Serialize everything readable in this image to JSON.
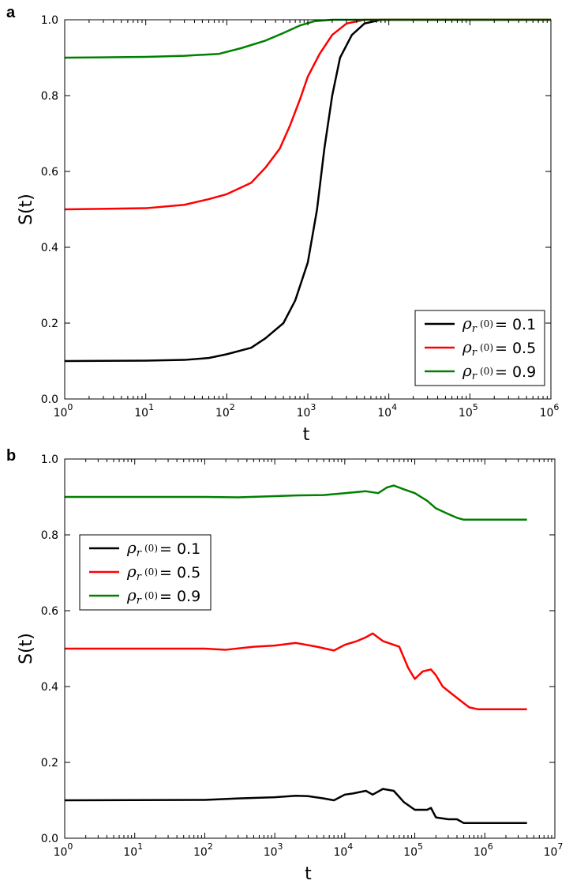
{
  "chart_data": [
    {
      "panel": "a",
      "type": "line",
      "xscale": "log",
      "xlim": [
        1,
        1000000
      ],
      "ylim": [
        0.0,
        1.0
      ],
      "xlabel": "t",
      "ylabel": "S(t)",
      "xticks": [
        {
          "value": 1,
          "base": "10",
          "exp": "0"
        },
        {
          "value": 10,
          "base": "10",
          "exp": "1"
        },
        {
          "value": 100,
          "base": "10",
          "exp": "2"
        },
        {
          "value": 1000,
          "base": "10",
          "exp": "3"
        },
        {
          "value": 10000,
          "base": "10",
          "exp": "4"
        },
        {
          "value": 100000,
          "base": "10",
          "exp": "5"
        },
        {
          "value": 1000000,
          "base": "10",
          "exp": "6"
        }
      ],
      "yticks": [
        {
          "value": 0.0,
          "label": "0.0"
        },
        {
          "value": 0.2,
          "label": "0.2"
        },
        {
          "value": 0.4,
          "label": "0.4"
        },
        {
          "value": 0.6,
          "label": "0.6"
        },
        {
          "value": 0.8,
          "label": "0.8"
        },
        {
          "value": 1.0,
          "label": "1.0"
        }
      ],
      "legend_position": "bottom-right",
      "series": [
        {
          "name": "0.1",
          "color": "#000000",
          "points": [
            [
              1,
              0.1
            ],
            [
              10,
              0.101
            ],
            [
              30,
              0.103
            ],
            [
              60,
              0.108
            ],
            [
              100,
              0.118
            ],
            [
              200,
              0.135
            ],
            [
              300,
              0.16
            ],
            [
              500,
              0.2
            ],
            [
              700,
              0.26
            ],
            [
              1000,
              0.36
            ],
            [
              1300,
              0.5
            ],
            [
              1600,
              0.66
            ],
            [
              2000,
              0.8
            ],
            [
              2500,
              0.9
            ],
            [
              3500,
              0.96
            ],
            [
              5000,
              0.99
            ],
            [
              8000,
              1.0
            ],
            [
              1000000,
              1.0
            ]
          ]
        },
        {
          "name": "0.5",
          "color": "#ff0000",
          "points": [
            [
              1,
              0.5
            ],
            [
              10,
              0.503
            ],
            [
              30,
              0.512
            ],
            [
              60,
              0.527
            ],
            [
              100,
              0.54
            ],
            [
              200,
              0.57
            ],
            [
              300,
              0.61
            ],
            [
              450,
              0.66
            ],
            [
              600,
              0.72
            ],
            [
              800,
              0.79
            ],
            [
              1000,
              0.85
            ],
            [
              1400,
              0.91
            ],
            [
              2000,
              0.96
            ],
            [
              3000,
              0.99
            ],
            [
              5000,
              1.0
            ],
            [
              1000000,
              1.0
            ]
          ]
        },
        {
          "name": "0.9",
          "color": "#008000",
          "points": [
            [
              1,
              0.9
            ],
            [
              10,
              0.902
            ],
            [
              30,
              0.905
            ],
            [
              80,
              0.91
            ],
            [
              150,
              0.925
            ],
            [
              300,
              0.945
            ],
            [
              500,
              0.965
            ],
            [
              800,
              0.985
            ],
            [
              1200,
              0.996
            ],
            [
              2000,
              1.0
            ],
            [
              1000000,
              1.0
            ]
          ]
        }
      ]
    },
    {
      "panel": "b",
      "type": "line",
      "xscale": "log",
      "xlim": [
        1,
        10000000
      ],
      "ylim": [
        0.0,
        1.0
      ],
      "xlabel": "t",
      "ylabel": "S(t)",
      "xticks": [
        {
          "value": 1,
          "base": "10",
          "exp": "0"
        },
        {
          "value": 10,
          "base": "10",
          "exp": "1"
        },
        {
          "value": 100,
          "base": "10",
          "exp": "2"
        },
        {
          "value": 1000,
          "base": "10",
          "exp": "3"
        },
        {
          "value": 10000,
          "base": "10",
          "exp": "4"
        },
        {
          "value": 100000,
          "base": "10",
          "exp": "5"
        },
        {
          "value": 1000000,
          "base": "10",
          "exp": "6"
        },
        {
          "value": 10000000,
          "base": "10",
          "exp": "7"
        }
      ],
      "yticks": [
        {
          "value": 0.0,
          "label": "0.0"
        },
        {
          "value": 0.2,
          "label": "0.2"
        },
        {
          "value": 0.4,
          "label": "0.4"
        },
        {
          "value": 0.6,
          "label": "0.6"
        },
        {
          "value": 0.8,
          "label": "0.8"
        },
        {
          "value": 1.0,
          "label": "1.0"
        }
      ],
      "legend_position": "upper-left",
      "series": [
        {
          "name": "0.1",
          "color": "#000000",
          "points": [
            [
              1,
              0.1
            ],
            [
              100,
              0.101
            ],
            [
              300,
              0.105
            ],
            [
              1000,
              0.108
            ],
            [
              2000,
              0.112
            ],
            [
              3000,
              0.111
            ],
            [
              5000,
              0.105
            ],
            [
              7000,
              0.1
            ],
            [
              10000,
              0.115
            ],
            [
              13000,
              0.118
            ],
            [
              20000,
              0.125
            ],
            [
              25000,
              0.115
            ],
            [
              35000,
              0.13
            ],
            [
              50000,
              0.125
            ],
            [
              70000,
              0.095
            ],
            [
              100000,
              0.075
            ],
            [
              150000,
              0.075
            ],
            [
              170000,
              0.08
            ],
            [
              200000,
              0.055
            ],
            [
              300000,
              0.05
            ],
            [
              400000,
              0.05
            ],
            [
              500000,
              0.04
            ],
            [
              4000000,
              0.04
            ]
          ]
        },
        {
          "name": "0.5",
          "color": "#ff0000",
          "points": [
            [
              1,
              0.5
            ],
            [
              100,
              0.5
            ],
            [
              200,
              0.497
            ],
            [
              500,
              0.505
            ],
            [
              1000,
              0.508
            ],
            [
              2000,
              0.515
            ],
            [
              4000,
              0.505
            ],
            [
              7000,
              0.495
            ],
            [
              10000,
              0.51
            ],
            [
              15000,
              0.52
            ],
            [
              20000,
              0.53
            ],
            [
              25000,
              0.54
            ],
            [
              35000,
              0.52
            ],
            [
              50000,
              0.51
            ],
            [
              60000,
              0.505
            ],
            [
              80000,
              0.45
            ],
            [
              100000,
              0.42
            ],
            [
              130000,
              0.44
            ],
            [
              170000,
              0.445
            ],
            [
              200000,
              0.43
            ],
            [
              250000,
              0.4
            ],
            [
              400000,
              0.37
            ],
            [
              600000,
              0.345
            ],
            [
              800000,
              0.34
            ],
            [
              4000000,
              0.34
            ]
          ]
        },
        {
          "name": "0.9",
          "color": "#008000",
          "points": [
            [
              1,
              0.9
            ],
            [
              100,
              0.9
            ],
            [
              300,
              0.899
            ],
            [
              1000,
              0.902
            ],
            [
              2000,
              0.904
            ],
            [
              5000,
              0.905
            ],
            [
              10000,
              0.91
            ],
            [
              20000,
              0.915
            ],
            [
              30000,
              0.91
            ],
            [
              40000,
              0.925
            ],
            [
              50000,
              0.93
            ],
            [
              70000,
              0.92
            ],
            [
              100000,
              0.91
            ],
            [
              150000,
              0.89
            ],
            [
              200000,
              0.87
            ],
            [
              300000,
              0.855
            ],
            [
              400000,
              0.845
            ],
            [
              500000,
              0.84
            ],
            [
              4000000,
              0.84
            ]
          ]
        }
      ]
    }
  ],
  "panel_labels": [
    "a",
    "b"
  ],
  "legend_symbol": "ρ",
  "legend_subscript": "r",
  "legend_superscript": "(0)",
  "legend_eq": "= "
}
